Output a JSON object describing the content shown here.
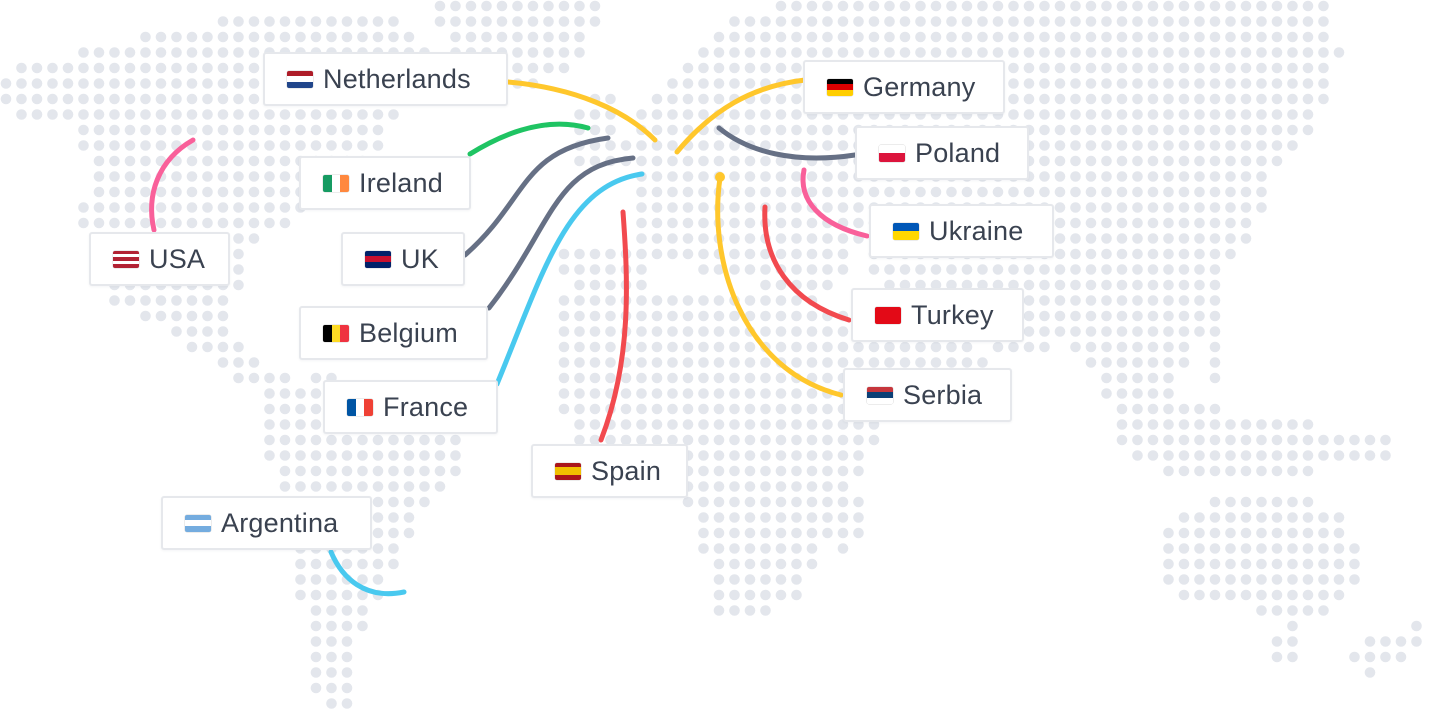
{
  "map": {
    "dot_color": "#e3e6ec"
  },
  "countries": [
    {
      "id": "netherlands",
      "label": "Netherlands",
      "flag": [
        "#ae1c28",
        "#ffffff",
        "#21468b"
      ],
      "flag_dir": "h",
      "link_color": "#ffc72c"
    },
    {
      "id": "germany",
      "label": "Germany",
      "flag": [
        "#000000",
        "#dd0000",
        "#ffce00"
      ],
      "flag_dir": "h",
      "link_color": "#ffc72c"
    },
    {
      "id": "ireland",
      "label": "Ireland",
      "flag": [
        "#169b62",
        "#ffffff",
        "#ff883e"
      ],
      "flag_dir": "v",
      "link_color": "#1fc463"
    },
    {
      "id": "poland",
      "label": "Poland",
      "flag": [
        "#ffffff",
        "#dc143c"
      ],
      "flag_dir": "h",
      "link_color": "#667085"
    },
    {
      "id": "usa",
      "label": "USA",
      "flag": [
        "#b22234",
        "#ffffff",
        "#b22234",
        "#ffffff",
        "#b22234"
      ],
      "flag_dir": "h",
      "link_color": "#f9609a"
    },
    {
      "id": "uk",
      "label": "UK",
      "flag": [
        "#012169",
        "#c8102e",
        "#012169"
      ],
      "flag_dir": "h",
      "link_color": "#667085"
    },
    {
      "id": "ukraine",
      "label": "Ukraine",
      "flag": [
        "#0057b7",
        "#ffd700"
      ],
      "flag_dir": "h",
      "link_color": "#f9609a"
    },
    {
      "id": "belgium",
      "label": "Belgium",
      "flag": [
        "#000000",
        "#fdda24",
        "#ef3340"
      ],
      "flag_dir": "v",
      "link_color": "#667085"
    },
    {
      "id": "turkey",
      "label": "Turkey",
      "flag": [
        "#e30a17"
      ],
      "flag_dir": "h",
      "link_color": "#f24a4f"
    },
    {
      "id": "france",
      "label": "France",
      "flag": [
        "#0055a4",
        "#ffffff",
        "#ef4135"
      ],
      "flag_dir": "v",
      "link_color": "#49c9ef"
    },
    {
      "id": "serbia",
      "label": "Serbia",
      "flag": [
        "#c6363c",
        "#0c4076",
        "#ffffff"
      ],
      "flag_dir": "h",
      "link_color": "#ffc72c"
    },
    {
      "id": "spain",
      "label": "Spain",
      "flag": [
        "#aa151b",
        "#f1bf00",
        "#f1bf00",
        "#aa151b"
      ],
      "flag_dir": "h",
      "link_color": "#f24a4f"
    },
    {
      "id": "argentina",
      "label": "Argentina",
      "flag": [
        "#74acdf",
        "#ffffff",
        "#74acdf"
      ],
      "flag_dir": "h",
      "link_color": "#49c9ef"
    }
  ]
}
